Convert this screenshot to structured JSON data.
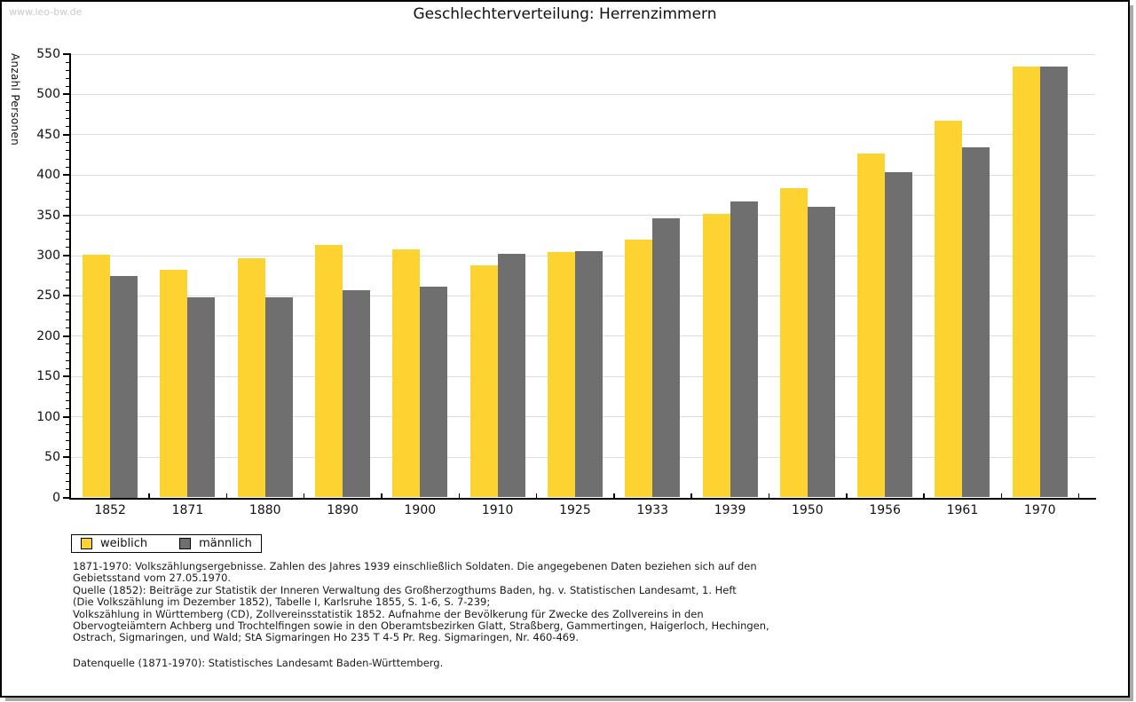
{
  "page": {
    "watermark": "www.leo-bw.de"
  },
  "chart_data": {
    "type": "bar",
    "title": "Geschlechterverteilung: Herrenzimmern",
    "xlabel": "",
    "ylabel": "Anzahl Personen",
    "categories": [
      "1852",
      "1871",
      "1880",
      "1890",
      "1900",
      "1910",
      "1925",
      "1933",
      "1939",
      "1950",
      "1956",
      "1961",
      "1970"
    ],
    "series": [
      {
        "name": "weiblich",
        "color": "#FCD330",
        "values": [
          301,
          282,
          297,
          313,
          308,
          288,
          305,
          320,
          352,
          384,
          427,
          467,
          535
        ]
      },
      {
        "name": "männlich",
        "color": "#6F6F6F",
        "values": [
          275,
          248,
          248,
          257,
          262,
          302,
          306,
          346,
          367,
          361,
          404,
          434,
          535
        ]
      }
    ],
    "ylim": [
      0,
      550
    ],
    "ytick_step": 50,
    "yminor_step": 10,
    "grid": true,
    "gridline_color": "#dedede",
    "legend_position": "below-plot-left"
  },
  "footnotes": {
    "lines": [
      "1871-1970: Volkszählungsergebnisse. Zahlen des Jahres 1939 einschließlich Soldaten. Die angegebenen Daten beziehen sich auf den",
      "Gebietsstand vom 27.05.1970.",
      "Quelle (1852): Beiträge zur Statistik der Inneren Verwaltung des Großherzogthums Baden, hg. v. Statistischen Landesamt, 1. Heft",
      "(Die Volkszählung im Dezember 1852), Tabelle I, Karlsruhe 1855, S. 1-6, S. 7-239;",
      "Volkszählung in Württemberg (CD), Zollvereinsstatistik 1852. Aufnahme der Bevölkerung für Zwecke des Zollvereins in den",
      "Obervogteiämtern Achberg und Trochtelfingen sowie in den Oberamtsbezirken Glatt, Straßberg, Gammertingen, Haigerloch, Hechingen,",
      "Ostrach, Sigmaringen, und Wald; StA Sigmaringen Ho 235 T 4-5 Pr. Reg. Sigmaringen, Nr. 460-469."
    ],
    "datasource": "Datenquelle (1871-1970): Statistisches Landesamt Baden-Württemberg."
  }
}
